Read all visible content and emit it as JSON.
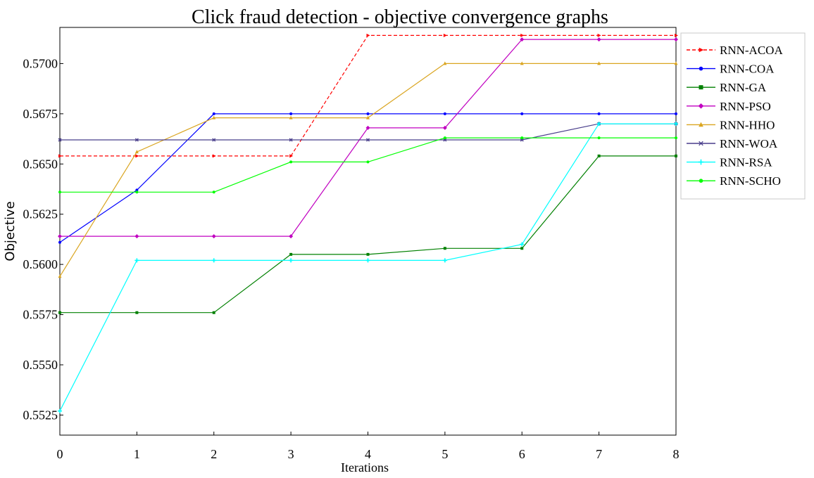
{
  "chart_data": {
    "type": "line",
    "title": "Click fraud detection -  objective convergence graphs",
    "xlabel": "Iterations",
    "ylabel": "Objective",
    "x": [
      0,
      1,
      2,
      3,
      4,
      5,
      6,
      7,
      8
    ],
    "xlim": [
      0,
      8
    ],
    "ylim": [
      0.5515,
      0.5718
    ],
    "xticks": [
      "0",
      "1",
      "2",
      "3",
      "4",
      "5",
      "6",
      "7",
      "8"
    ],
    "yticks": [
      {
        "value": 0.5525,
        "label": "0.5525"
      },
      {
        "value": 0.555,
        "label": "0.5550"
      },
      {
        "value": 0.5575,
        "label": "0.5575"
      },
      {
        "value": 0.56,
        "label": "0.5600"
      },
      {
        "value": 0.5625,
        "label": "0.5625"
      },
      {
        "value": 0.565,
        "label": "0.5650"
      },
      {
        "value": 0.5675,
        "label": "0.5675"
      },
      {
        "value": 0.57,
        "label": "0.5700"
      }
    ],
    "grid": false,
    "legend_position": "right",
    "series": [
      {
        "name": "RNN-ACOA",
        "color": "#ff0000",
        "dash": true,
        "marker": "triangle-right",
        "values": [
          0.5654,
          0.5654,
          0.5654,
          0.5654,
          0.5714,
          0.5714,
          0.5714,
          0.5714,
          0.5714
        ]
      },
      {
        "name": "RNN-COA",
        "color": "#0000ff",
        "dash": false,
        "marker": "dot",
        "values": [
          0.5611,
          0.5637,
          0.5675,
          0.5675,
          0.5675,
          0.5675,
          0.5675,
          0.5675,
          0.5675
        ]
      },
      {
        "name": "RNN-GA",
        "color": "#008000",
        "dash": false,
        "marker": "square",
        "values": [
          0.5576,
          0.5576,
          0.5576,
          0.5605,
          0.5605,
          0.5608,
          0.5608,
          0.5654,
          0.5654
        ]
      },
      {
        "name": "RNN-PSO",
        "color": "#c000c0",
        "dash": false,
        "marker": "diamond",
        "values": [
          0.5614,
          0.5614,
          0.5614,
          0.5614,
          0.5668,
          0.5668,
          0.5712,
          0.5712,
          0.5712
        ]
      },
      {
        "name": "RNN-HHO",
        "color": "#daa520",
        "dash": false,
        "marker": "triangle-up",
        "values": [
          0.5594,
          0.5656,
          0.5673,
          0.5673,
          0.5673,
          0.57,
          0.57,
          0.57,
          0.57
        ]
      },
      {
        "name": "RNN-WOA",
        "color": "#483d8b",
        "dash": false,
        "marker": "x",
        "values": [
          0.5662,
          0.5662,
          0.5662,
          0.5662,
          0.5662,
          0.5662,
          0.5662,
          0.567,
          0.567
        ]
      },
      {
        "name": "RNN-RSA",
        "color": "#00ffff",
        "dash": false,
        "marker": "star",
        "values": [
          0.5527,
          0.5602,
          0.5602,
          0.5602,
          0.5602,
          0.5602,
          0.561,
          0.567,
          0.567
        ]
      },
      {
        "name": "RNN-SCHO",
        "color": "#00ff00",
        "dash": false,
        "marker": "dot",
        "values": [
          0.5636,
          0.5636,
          0.5636,
          0.5651,
          0.5651,
          0.5663,
          0.5663,
          0.5663,
          0.5663
        ]
      }
    ]
  }
}
